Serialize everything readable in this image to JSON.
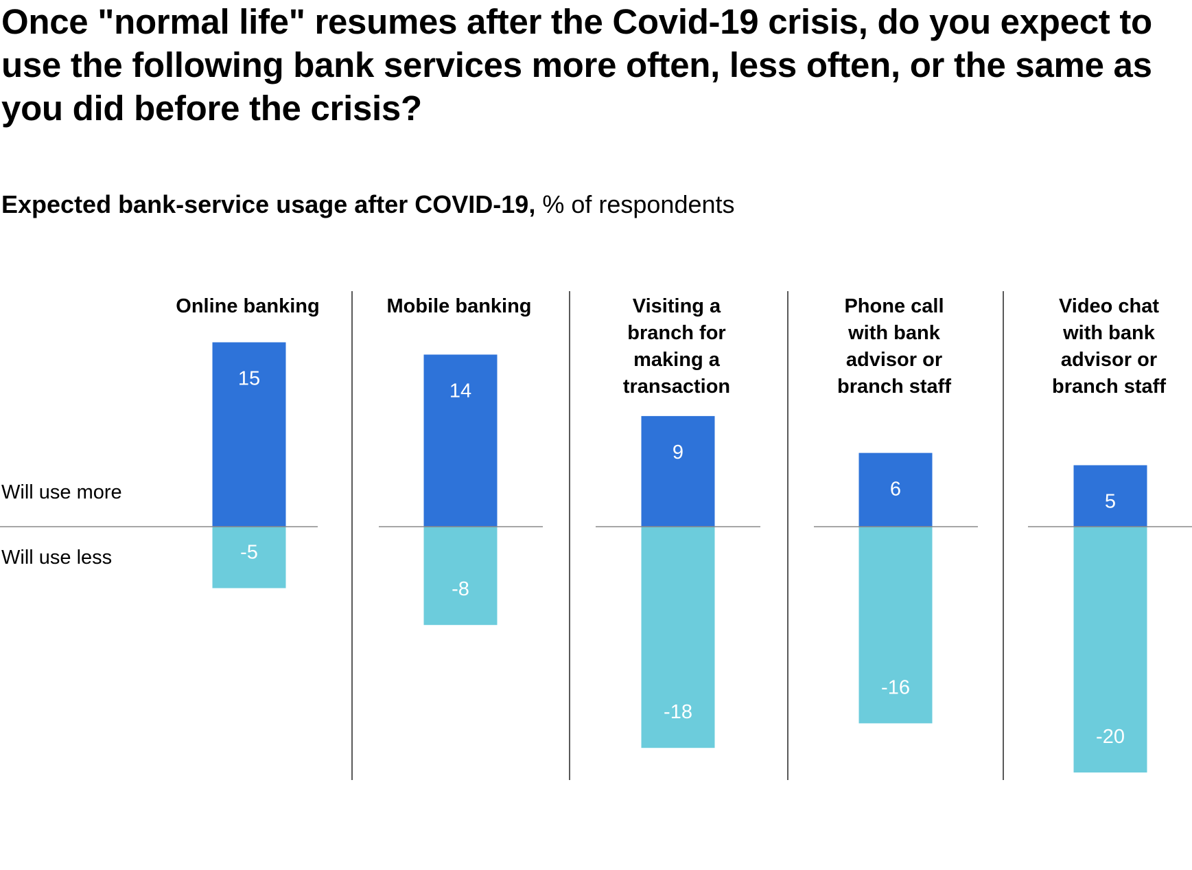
{
  "title": "Once \"normal life\" resumes after the Covid-19 crisis, do you expect to use the following bank services more often, less often, or the same as you did before the crisis?",
  "subtitle_bold": "Expected bank-service usage after COVID-19,",
  "subtitle_rest": " % of respondents",
  "colors": {
    "more": "#2E73D9",
    "less": "#6CCCDC",
    "axis": "#888888",
    "divider": "#222222",
    "bar_label": "#ffffff"
  },
  "chart_data": {
    "type": "bar",
    "row_labels": {
      "more": "Will use more",
      "less": "Will use less"
    },
    "categories": [
      "Online banking",
      "Mobile banking",
      "Visiting a branch for making a transaction",
      "Phone call with bank advisor or branch staff",
      "Video chat with bank advisor or branch staff"
    ],
    "category_label_lines": [
      [
        "Online banking"
      ],
      [
        "Mobile banking"
      ],
      [
        "Visiting a",
        "branch for",
        "making a",
        "transaction"
      ],
      [
        "Phone call",
        "with bank",
        "advisor or",
        "branch staff"
      ],
      [
        "Video chat",
        "with bank",
        "advisor or",
        "branch staff"
      ]
    ],
    "series": [
      {
        "name": "Will use more",
        "values": [
          15,
          14,
          9,
          6,
          5
        ]
      },
      {
        "name": "Will use less",
        "values": [
          -5,
          -8,
          -18,
          -16,
          -20
        ]
      }
    ],
    "ylim": [
      -20,
      15
    ]
  }
}
